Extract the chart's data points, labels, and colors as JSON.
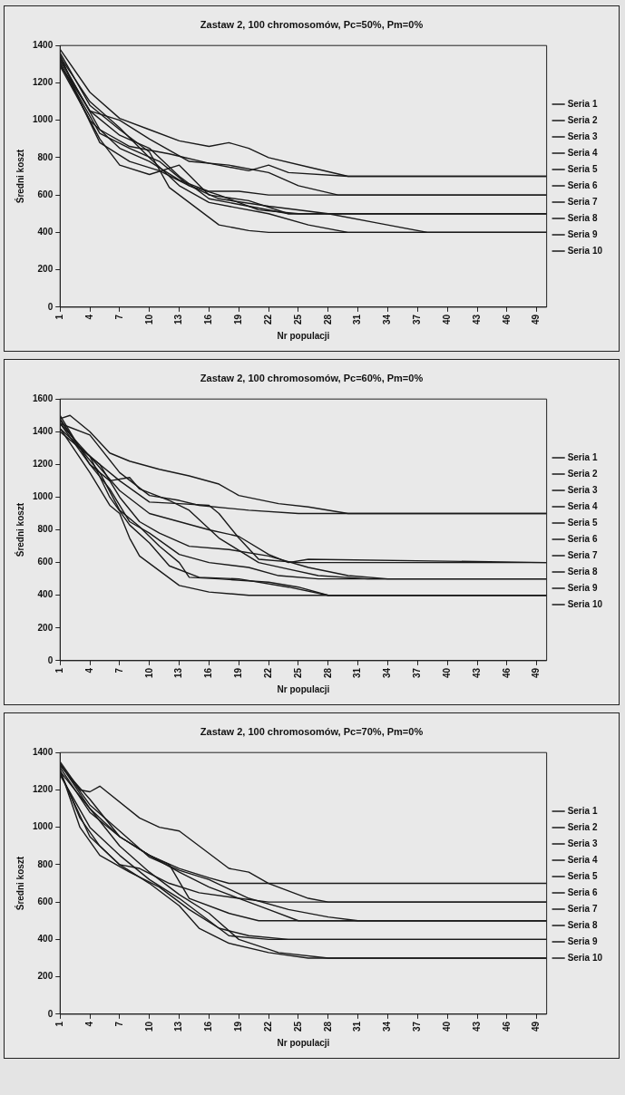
{
  "chart_data": [
    {
      "type": "line",
      "title": "Zastaw 2, 100 chromosomów, Pc=50%, Pm=0%",
      "xlabel": "Nr populacji",
      "ylabel": "Średni koszt",
      "xlim": [
        1,
        50
      ],
      "xticks": [
        1,
        4,
        7,
        10,
        13,
        16,
        19,
        22,
        25,
        28,
        31,
        34,
        37,
        40,
        43,
        46,
        49
      ],
      "ylim": [
        0,
        1400
      ],
      "yticks": [
        0,
        200,
        400,
        600,
        800,
        1000,
        1200,
        1400
      ],
      "grid": false,
      "legend": "right",
      "marker": "none",
      "series": [
        {
          "name": "Seria 1",
          "color": "#1a1a1a",
          "x": [
            1,
            4,
            7,
            10,
            13,
            16,
            18,
            20,
            22,
            26,
            30,
            50
          ],
          "values": [
            1380,
            1150,
            1010,
            950,
            890,
            860,
            880,
            850,
            800,
            750,
            700,
            700
          ]
        },
        {
          "name": "Seria 2",
          "color": "#1a1a1a",
          "x": [
            1,
            5,
            8,
            12,
            16,
            20,
            22,
            24,
            30,
            50
          ],
          "values": [
            1330,
            950,
            860,
            820,
            770,
            730,
            760,
            720,
            700,
            700
          ]
        },
        {
          "name": "Seria 3",
          "color": "#1a1a1a",
          "x": [
            1,
            4,
            7,
            10,
            14,
            18,
            22,
            25,
            29,
            50
          ],
          "values": [
            1300,
            1050,
            1000,
            900,
            780,
            760,
            720,
            650,
            600,
            600
          ]
        },
        {
          "name": "Seria 4",
          "color": "#1a1a1a",
          "x": [
            1,
            4,
            7,
            10,
            13,
            16,
            19,
            22,
            50
          ],
          "values": [
            1290,
            1000,
            850,
            780,
            680,
            620,
            620,
            600,
            600
          ]
        },
        {
          "name": "Seria 5",
          "color": "#1a1a1a",
          "x": [
            1,
            3,
            5,
            7,
            10,
            13,
            16,
            20,
            24,
            50
          ],
          "values": [
            1350,
            1100,
            900,
            760,
            710,
            760,
            600,
            570,
            500,
            500
          ]
        },
        {
          "name": "Seria 6",
          "color": "#1a1a1a",
          "x": [
            1,
            4,
            7,
            10,
            13,
            16,
            20,
            24,
            50
          ],
          "values": [
            1320,
            1050,
            920,
            850,
            700,
            580,
            540,
            500,
            500
          ]
        },
        {
          "name": "Seria 7",
          "color": "#1a1a1a",
          "x": [
            1,
            5,
            8,
            11,
            14,
            17,
            22,
            28,
            33,
            38,
            50
          ],
          "values": [
            1300,
            930,
            850,
            780,
            650,
            580,
            540,
            500,
            450,
            400,
            400
          ]
        },
        {
          "name": "Seria 8",
          "color": "#1a1a1a",
          "x": [
            1,
            4,
            7,
            10,
            13,
            16,
            19,
            22,
            26,
            30,
            50
          ],
          "values": [
            1340,
            1100,
            960,
            800,
            650,
            560,
            530,
            500,
            440,
            400,
            400
          ]
        },
        {
          "name": "Seria 9",
          "color": "#1a1a1a",
          "x": [
            1,
            4,
            7,
            10,
            12,
            14,
            17,
            20,
            22,
            50
          ],
          "values": [
            1360,
            1080,
            950,
            830,
            640,
            560,
            440,
            410,
            400,
            400
          ]
        },
        {
          "name": "Seria 10",
          "color": "#1a1a1a",
          "x": [
            1,
            3,
            5,
            8,
            11,
            14,
            17,
            21,
            25,
            50
          ],
          "values": [
            1310,
            1100,
            880,
            780,
            730,
            650,
            600,
            520,
            500,
            500
          ]
        }
      ]
    },
    {
      "type": "line",
      "title": "Zastaw 2, 100 chromosomów, Pc=60%, Pm=0%",
      "xlabel": "Nr populacji",
      "ylabel": "Średni koszt",
      "xlim": [
        1,
        50
      ],
      "xticks": [
        1,
        4,
        7,
        10,
        13,
        16,
        19,
        22,
        25,
        28,
        31,
        34,
        37,
        40,
        43,
        46,
        49
      ],
      "ylim": [
        0,
        1600
      ],
      "yticks": [
        0,
        200,
        400,
        600,
        800,
        1000,
        1200,
        1400,
        1600
      ],
      "grid": false,
      "legend": "right",
      "marker": "none",
      "series": [
        {
          "name": "Seria 1",
          "color": "#1a1a1a",
          "x": [
            1,
            2,
            4,
            6,
            8,
            11,
            14,
            17,
            19,
            23,
            26,
            30,
            50
          ],
          "values": [
            1480,
            1500,
            1400,
            1270,
            1220,
            1170,
            1130,
            1080,
            1010,
            960,
            940,
            900,
            900
          ]
        },
        {
          "name": "Seria 2",
          "color": "#1a1a1a",
          "x": [
            1,
            4,
            7,
            10,
            13,
            15,
            20,
            25,
            50
          ],
          "values": [
            1450,
            1380,
            1150,
            1010,
            980,
            950,
            920,
            900,
            900
          ]
        },
        {
          "name": "Seria 3",
          "color": "#1a1a1a",
          "x": [
            1,
            4,
            7,
            10,
            13,
            16,
            17,
            19,
            21,
            25,
            50
          ],
          "values": [
            1420,
            1250,
            1100,
            970,
            960,
            950,
            900,
            750,
            620,
            600,
            600
          ]
        },
        {
          "name": "Seria 4",
          "color": "#1a1a1a",
          "x": [
            1,
            4,
            7,
            10,
            13,
            16,
            19,
            22,
            24,
            26,
            50
          ],
          "values": [
            1400,
            1250,
            1040,
            900,
            850,
            800,
            760,
            650,
            600,
            620,
            600
          ]
        },
        {
          "name": "Seria 5",
          "color": "#1a1a1a",
          "x": [
            1,
            4,
            6,
            8,
            9,
            12,
            14,
            17,
            21,
            24,
            27,
            32,
            50
          ],
          "values": [
            1450,
            1200,
            1100,
            1120,
            1050,
            980,
            920,
            750,
            600,
            560,
            520,
            500,
            500
          ]
        },
        {
          "name": "Seria 6",
          "color": "#1a1a1a",
          "x": [
            1,
            3,
            5,
            7,
            9,
            11,
            14,
            18,
            22,
            26,
            30,
            34,
            50
          ],
          "values": [
            1480,
            1300,
            1200,
            1000,
            850,
            780,
            700,
            680,
            640,
            570,
            520,
            500,
            500
          ]
        },
        {
          "name": "Seria 7",
          "color": "#1a1a1a",
          "x": [
            1,
            4,
            6,
            8,
            10,
            13,
            16,
            20,
            23,
            27,
            50
          ],
          "values": [
            1500,
            1200,
            1050,
            850,
            780,
            650,
            600,
            570,
            520,
            500,
            500
          ]
        },
        {
          "name": "Seria 8",
          "color": "#1a1a1a",
          "x": [
            1,
            4,
            6,
            8,
            10,
            12,
            15,
            19,
            24,
            28,
            50
          ],
          "values": [
            1450,
            1250,
            1000,
            830,
            720,
            580,
            510,
            500,
            450,
            400,
            400
          ]
        },
        {
          "name": "Seria 9",
          "color": "#1a1a1a",
          "x": [
            1,
            4,
            6,
            7,
            8,
            9,
            11,
            13,
            16,
            20,
            50
          ],
          "values": [
            1420,
            1150,
            950,
            900,
            750,
            640,
            550,
            460,
            420,
            400,
            400
          ]
        },
        {
          "name": "Seria 10",
          "color": "#1a1a1a",
          "x": [
            1,
            3,
            5,
            7,
            9,
            11,
            13,
            14,
            17,
            22,
            25,
            28,
            50
          ],
          "values": [
            1470,
            1300,
            1150,
            920,
            820,
            700,
            600,
            510,
            500,
            480,
            450,
            400,
            400
          ]
        }
      ]
    },
    {
      "type": "line",
      "title": "Zastaw 2, 100 chromosomów, Pc=70%, Pm=0%",
      "xlabel": "Nr populacji",
      "ylabel": "Średni koszt",
      "xlim": [
        1,
        50
      ],
      "xticks": [
        1,
        4,
        7,
        10,
        13,
        16,
        19,
        22,
        25,
        28,
        31,
        34,
        37,
        40,
        43,
        46,
        49
      ],
      "ylim": [
        0,
        1400
      ],
      "yticks": [
        0,
        200,
        400,
        600,
        800,
        1000,
        1200,
        1400
      ],
      "grid": false,
      "legend": "right",
      "marker": "none",
      "series": [
        {
          "name": "Seria 1",
          "color": "#1a1a1a",
          "x": [
            1,
            3,
            4,
            5,
            9,
            11,
            13,
            15,
            18,
            20,
            22,
            26,
            28,
            50
          ],
          "values": [
            1350,
            1200,
            1190,
            1220,
            1050,
            1000,
            980,
            900,
            780,
            760,
            700,
            620,
            600,
            600
          ]
        },
        {
          "name": "Seria 2",
          "color": "#1a1a1a",
          "x": [
            1,
            4,
            7,
            10,
            13,
            16,
            18,
            50
          ],
          "values": [
            1330,
            1150,
            950,
            850,
            780,
            730,
            700,
            700
          ]
        },
        {
          "name": "Seria 3",
          "color": "#1a1a1a",
          "x": [
            1,
            4,
            7,
            10,
            13,
            16,
            19,
            22,
            50
          ],
          "values": [
            1300,
            1100,
            950,
            850,
            760,
            680,
            620,
            600,
            600
          ]
        },
        {
          "name": "Seria 4",
          "color": "#1a1a1a",
          "x": [
            1,
            4,
            7,
            10,
            13,
            16,
            20,
            24,
            28,
            31,
            50
          ],
          "values": [
            1340,
            1120,
            980,
            840,
            770,
            720,
            620,
            560,
            520,
            500,
            500
          ]
        },
        {
          "name": "Seria 5",
          "color": "#1a1a1a",
          "x": [
            1,
            4,
            7,
            10,
            12,
            14,
            18,
            21,
            50
          ],
          "values": [
            1320,
            1080,
            950,
            850,
            800,
            620,
            540,
            500,
            500
          ]
        },
        {
          "name": "Seria 6",
          "color": "#1a1a1a",
          "x": [
            1,
            3,
            5,
            7,
            9,
            12,
            15,
            19,
            22,
            25,
            50
          ],
          "values": [
            1300,
            1050,
            900,
            800,
            780,
            700,
            650,
            620,
            560,
            500,
            500
          ]
        },
        {
          "name": "Seria 7",
          "color": "#1a1a1a",
          "x": [
            1,
            4,
            7,
            10,
            13,
            16,
            18,
            22,
            50
          ],
          "values": [
            1280,
            1000,
            850,
            720,
            620,
            500,
            420,
            400,
            400
          ]
        },
        {
          "name": "Seria 8",
          "color": "#1a1a1a",
          "x": [
            1,
            3,
            5,
            8,
            11,
            14,
            17,
            20,
            24,
            50
          ],
          "values": [
            1310,
            1000,
            850,
            760,
            680,
            560,
            460,
            420,
            400,
            400
          ]
        },
        {
          "name": "Seria 9",
          "color": "#1a1a1a",
          "x": [
            1,
            4,
            7,
            10,
            13,
            15,
            18,
            22,
            26,
            50
          ],
          "values": [
            1290,
            950,
            800,
            700,
            580,
            460,
            380,
            330,
            300,
            300
          ]
        },
        {
          "name": "Seria 10",
          "color": "#1a1a1a",
          "x": [
            1,
            4,
            7,
            10,
            13,
            16,
            19,
            23,
            28,
            50
          ],
          "values": [
            1340,
            1100,
            900,
            760,
            640,
            540,
            400,
            330,
            300,
            300
          ]
        }
      ]
    }
  ]
}
